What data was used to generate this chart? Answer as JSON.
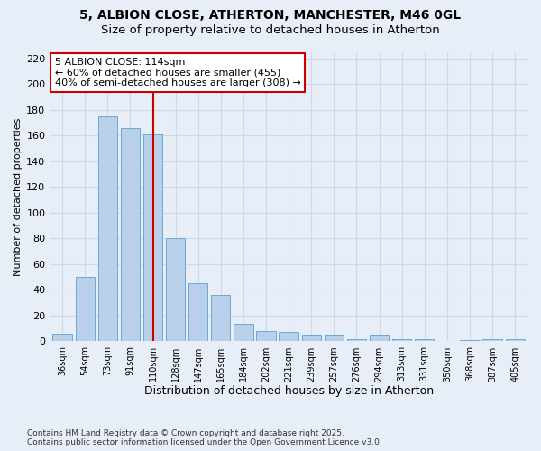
{
  "title1": "5, ALBION CLOSE, ATHERTON, MANCHESTER, M46 0GL",
  "title2": "Size of property relative to detached houses in Atherton",
  "xlabel": "Distribution of detached houses by size in Atherton",
  "ylabel": "Number of detached properties",
  "categories": [
    "36sqm",
    "54sqm",
    "73sqm",
    "91sqm",
    "110sqm",
    "128sqm",
    "147sqm",
    "165sqm",
    "184sqm",
    "202sqm",
    "221sqm",
    "239sqm",
    "257sqm",
    "276sqm",
    "294sqm",
    "313sqm",
    "331sqm",
    "350sqm",
    "368sqm",
    "387sqm",
    "405sqm"
  ],
  "values": [
    6,
    50,
    175,
    166,
    161,
    80,
    45,
    36,
    14,
    8,
    7,
    5,
    5,
    2,
    5,
    2,
    2,
    0,
    1,
    2,
    2
  ],
  "bar_color": "#b8d0ea",
  "bar_edgecolor": "#6aaad4",
  "vline_x_index": 4,
  "vline_color": "#cc0000",
  "annotation_line1": "5 ALBION CLOSE: 114sqm",
  "annotation_line2": "← 60% of detached houses are smaller (455)",
  "annotation_line3": "40% of semi-detached houses are larger (308) →",
  "annotation_box_edgecolor": "#cc0000",
  "footer1": "Contains HM Land Registry data © Crown copyright and database right 2025.",
  "footer2": "Contains public sector information licensed under the Open Government Licence v3.0.",
  "bg_color": "#e8eef7",
  "plot_bg_color": "#e8eef7",
  "grid_color": "#d0d8e8",
  "title1_fontsize": 10,
  "title2_fontsize": 9.5,
  "ylim": [
    0,
    225
  ],
  "yticks": [
    0,
    20,
    40,
    60,
    80,
    100,
    120,
    140,
    160,
    180,
    200,
    220
  ]
}
